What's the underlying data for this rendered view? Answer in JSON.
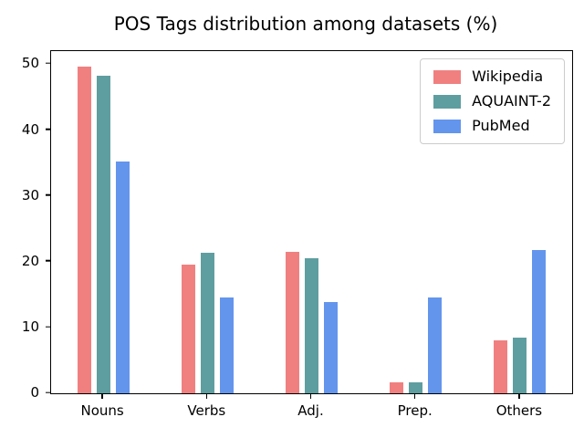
{
  "chart_data": {
    "type": "bar",
    "title": "POS Tags distribution among datasets (%)",
    "categories": [
      "Nouns",
      "Verbs",
      "Adj.",
      "Prep.",
      "Others"
    ],
    "series": [
      {
        "name": "Wikipedia",
        "color": "#f08080",
        "values": [
          49.7,
          19.6,
          21.5,
          1.7,
          8.0
        ]
      },
      {
        "name": "AQUAINT-2",
        "color": "#5f9ea0",
        "values": [
          48.2,
          21.3,
          20.5,
          1.7,
          8.4
        ]
      },
      {
        "name": "PubMed",
        "color": "#6495ed",
        "values": [
          35.2,
          14.5,
          13.9,
          14.5,
          21.8
        ]
      }
    ],
    "xlabel": "",
    "ylabel": "",
    "ylim": [
      0,
      52
    ],
    "yticks": [
      0,
      10,
      20,
      30,
      40,
      50
    ],
    "grid": false,
    "legend_position": "upper right",
    "axis_color": "#000000",
    "legend_edge_color": "#cccccc",
    "background_color": "#ffffff"
  }
}
